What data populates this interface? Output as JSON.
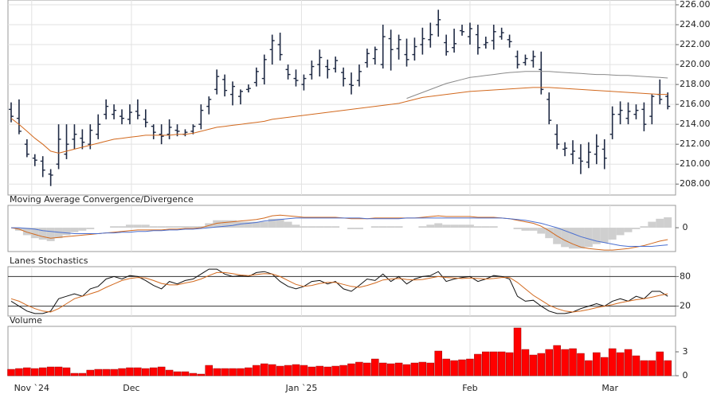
{
  "chart_data": [
    {
      "type": "ohlc",
      "color": "#1f2a44",
      "open": [
        215.5,
        214.6,
        212,
        210.6,
        210.3,
        209,
        210,
        211,
        212.5,
        212.6,
        212,
        213,
        215,
        215,
        214.8,
        214.5,
        215.3,
        214.5,
        213.8,
        213,
        213,
        213.4,
        213,
        213.3,
        214,
        215.8,
        217.5,
        218.5,
        217,
        216.8,
        217.5,
        218.2,
        218.6,
        221.5,
        222,
        219.5,
        218.6,
        218,
        219,
        220,
        219.8,
        219.6,
        219.2,
        218,
        218.4,
        220.2,
        220.6,
        220,
        222.6,
        221.6,
        221,
        221,
        222,
        222.5,
        224,
        222.2,
        221.7,
        223.4,
        222.8,
        223,
        222,
        222.4,
        222.8,
        222.5,
        220.8,
        220.2,
        220.4,
        219.5,
        216.5,
        213,
        211.5,
        211,
        210.6,
        210.2,
        211,
        211.5,
        213,
        215,
        214.6,
        215,
        215.5,
        214.8,
        217,
        216.8
      ],
      "high": [
        216.2,
        216.5,
        212.5,
        211,
        210.8,
        209.5,
        214,
        214,
        214,
        213.5,
        214,
        215,
        216.5,
        216,
        215.5,
        216,
        216.5,
        215.5,
        214,
        214,
        214.5,
        214,
        213.5,
        214,
        216,
        216.8,
        219.5,
        219,
        218.3,
        217.5,
        218,
        219.7,
        221,
        223,
        223.2,
        220,
        219.5,
        219,
        220.4,
        221.5,
        220.5,
        220.8,
        219.7,
        219.2,
        220,
        221.6,
        221.8,
        224,
        223.5,
        223,
        222.6,
        222.7,
        223.7,
        224.2,
        225.5,
        223,
        223.6,
        224,
        224.2,
        224,
        222.8,
        224,
        223.7,
        223,
        221.4,
        221,
        221.4,
        221.3,
        217.2,
        214,
        212.2,
        212.4,
        212,
        212.2,
        213,
        212.5,
        215.8,
        216.3,
        216.2,
        216,
        216.2,
        217,
        218.5,
        217.2
      ],
      "low": [
        214.2,
        213,
        210.7,
        209.8,
        208.7,
        207.8,
        209.5,
        210.5,
        211.5,
        211.5,
        211.5,
        212.5,
        214.5,
        214.5,
        214,
        214,
        214.5,
        213.7,
        212.5,
        212,
        212.5,
        212.8,
        212.8,
        213,
        213.5,
        215,
        217,
        216.8,
        215.9,
        216,
        217.2,
        217.8,
        218,
        220,
        220.4,
        218.5,
        217.8,
        217.4,
        218.5,
        218.8,
        218.6,
        219.2,
        217.8,
        217,
        217.8,
        219.7,
        220,
        219.6,
        219.4,
        220.5,
        219.8,
        220.4,
        221,
        221.7,
        222.8,
        220.9,
        221.2,
        222.9,
        222,
        221,
        221.6,
        221.5,
        222.5,
        221.7,
        219.6,
        219.9,
        219.7,
        217,
        214,
        211.5,
        210.8,
        210,
        209,
        209.6,
        210,
        209.5,
        212.5,
        214,
        214,
        214.5,
        213.3,
        214,
        216,
        215.5
      ],
      "close": [
        214.8,
        213.3,
        211,
        210.4,
        209.4,
        208.9,
        212.5,
        212,
        213,
        212.2,
        213.4,
        214,
        215.8,
        215.4,
        214.6,
        215.2,
        214.9,
        214.2,
        213.2,
        212.8,
        213.7,
        213.3,
        213.2,
        213.8,
        215.4,
        216.5,
        218.8,
        217.4,
        217.8,
        217.3,
        217.6,
        219.3,
        220.5,
        222.4,
        221,
        219,
        218.4,
        218.6,
        219.8,
        220.7,
        219.5,
        220.4,
        218.6,
        217.9,
        219.3,
        221.1,
        221.5,
        222.8,
        221.5,
        222.5,
        220.5,
        221.8,
        222.6,
        223,
        224.5,
        221.3,
        222.1,
        223.3,
        223.6,
        221.7,
        222.2,
        223.3,
        223.2,
        222.3,
        220,
        220.6,
        220.8,
        217.5,
        214.4,
        212,
        211.6,
        211.3,
        210.3,
        211.2,
        211.8,
        210.6,
        215,
        215.4,
        215.3,
        215.4,
        214,
        216.8,
        216.5,
        215.8
      ],
      "overlays": [
        {
          "color": "#d2691e",
          "values": [
            214.6,
            214,
            213.3,
            212.6,
            212,
            211.3,
            211.1,
            211.3,
            211.5,
            211.7,
            211.9,
            212.1,
            212.3,
            212.5,
            212.6,
            212.7,
            212.8,
            212.9,
            212.9,
            212.9,
            212.9,
            213,
            213,
            213.1,
            213.3,
            213.5,
            213.7,
            213.8,
            213.9,
            214,
            214.1,
            214.2,
            214.3,
            214.5,
            214.6,
            214.7,
            214.8,
            214.9,
            215,
            215.1,
            215.2,
            215.3,
            215.4,
            215.5,
            215.6,
            215.7,
            215.8,
            215.9,
            216,
            216.1,
            216.3,
            216.5,
            216.7,
            216.8,
            216.9,
            217,
            217.1,
            217.2,
            217.3,
            217.35,
            217.4,
            217.45,
            217.5,
            217.55,
            217.6,
            217.65,
            217.7,
            217.7,
            217.7,
            217.65,
            217.6,
            217.55,
            217.5,
            217.45,
            217.4,
            217.35,
            217.3,
            217.25,
            217.2,
            217.15,
            217.1,
            217.05,
            217,
            217
          ]
        },
        {
          "color": "#8a8a8a",
          "values": [
            null,
            null,
            null,
            null,
            null,
            null,
            null,
            null,
            null,
            null,
            null,
            null,
            null,
            null,
            null,
            null,
            null,
            null,
            null,
            null,
            null,
            null,
            null,
            null,
            null,
            null,
            null,
            null,
            null,
            null,
            null,
            null,
            null,
            null,
            null,
            null,
            null,
            null,
            null,
            null,
            null,
            null,
            null,
            null,
            null,
            null,
            null,
            null,
            null,
            null,
            216.6,
            216.9,
            217.2,
            217.5,
            217.8,
            218.1,
            218.3,
            218.5,
            218.7,
            218.8,
            218.9,
            219,
            219.1,
            219.2,
            219.25,
            219.3,
            219.3,
            219.3,
            219.3,
            219.25,
            219.2,
            219.15,
            219.1,
            219.05,
            219,
            219,
            218.95,
            218.9,
            218.9,
            218.85,
            218.8,
            218.75,
            218.7,
            218.65
          ]
        }
      ],
      "ylim": [
        206.9,
        226
      ],
      "yticks": [
        {
          "value": 208,
          "label": "208.00"
        },
        {
          "value": 210,
          "label": "210.00"
        },
        {
          "value": 212,
          "label": "212.00"
        },
        {
          "value": 214,
          "label": "214.00"
        },
        {
          "value": 216,
          "label": "216.00"
        },
        {
          "value": 218,
          "label": "218.00"
        },
        {
          "value": 220,
          "label": "220.00"
        },
        {
          "value": 222,
          "label": "222.00"
        },
        {
          "value": 224,
          "label": "224.00"
        },
        {
          "value": 226,
          "label": "226.00"
        }
      ],
      "grid": true
    },
    {
      "type": "line",
      "title": "Moving Average Convergence/Divergence",
      "series": [
        {
          "kind": "histogram",
          "color": "#cfcfcf",
          "values": [
            0,
            -0.4,
            -1,
            -1.4,
            -1.6,
            -1.8,
            -1.4,
            -1,
            -0.6,
            -0.4,
            -0.2,
            0,
            0,
            0.2,
            0.2,
            0.4,
            0.4,
            0.4,
            0.2,
            0.2,
            0.2,
            0.2,
            0.2,
            0.2,
            0.2,
            0.6,
            1,
            1,
            1,
            0.8,
            0.8,
            0.8,
            0.8,
            1.2,
            1.2,
            0.8,
            0.4,
            0.2,
            0.2,
            0.2,
            0.2,
            0.2,
            0,
            -0.2,
            -0.2,
            0,
            0.2,
            0.2,
            0.2,
            0.2,
            0,
            0,
            0.2,
            0.4,
            0.6,
            0.4,
            0.4,
            0.4,
            0.4,
            0.2,
            0.2,
            0.2,
            0,
            0,
            -0.2,
            -0.4,
            -0.4,
            -0.8,
            -1.4,
            -2.2,
            -2.6,
            -2.8,
            -2.8,
            -2.6,
            -2.2,
            -2,
            -1.6,
            -1,
            -0.6,
            -0.2,
            0.2,
            0.8,
            1.2,
            1.4
          ]
        },
        {
          "kind": "line",
          "color": "#d2691e",
          "values": [
            0,
            -0.2,
            -0.6,
            -0.9,
            -1.2,
            -1.4,
            -1.3,
            -1.2,
            -1.1,
            -1,
            -0.9,
            -0.8,
            -0.7,
            -0.6,
            -0.5,
            -0.4,
            -0.3,
            -0.3,
            -0.3,
            -0.3,
            -0.2,
            -0.2,
            -0.1,
            -0.1,
            0,
            0.3,
            0.6,
            0.7,
            0.8,
            0.9,
            1,
            1.1,
            1.3,
            1.6,
            1.7,
            1.6,
            1.5,
            1.4,
            1.4,
            1.4,
            1.4,
            1.4,
            1.3,
            1.2,
            1.2,
            1.2,
            1.3,
            1.3,
            1.3,
            1.3,
            1.3,
            1.3,
            1.4,
            1.5,
            1.6,
            1.5,
            1.5,
            1.5,
            1.5,
            1.4,
            1.4,
            1.4,
            1.3,
            1.2,
            1,
            0.8,
            0.6,
            0.2,
            -0.4,
            -1.1,
            -1.7,
            -2.2,
            -2.6,
            -2.8,
            -2.9,
            -3,
            -3,
            -2.9,
            -2.8,
            -2.6,
            -2.4,
            -2.1,
            -1.8,
            -1.6
          ]
        },
        {
          "kind": "line",
          "color": "#4a6fd0",
          "values": [
            0,
            0,
            -0.1,
            -0.2,
            -0.4,
            -0.5,
            -0.6,
            -0.7,
            -0.8,
            -0.8,
            -0.8,
            -0.8,
            -0.7,
            -0.7,
            -0.6,
            -0.6,
            -0.5,
            -0.5,
            -0.4,
            -0.4,
            -0.3,
            -0.3,
            -0.2,
            -0.2,
            -0.1,
            0,
            0.1,
            0.2,
            0.3,
            0.5,
            0.6,
            0.7,
            0.9,
            1,
            1.1,
            1.2,
            1.3,
            1.3,
            1.3,
            1.3,
            1.3,
            1.3,
            1.3,
            1.3,
            1.3,
            1.2,
            1.2,
            1.2,
            1.2,
            1.2,
            1.3,
            1.3,
            1.3,
            1.3,
            1.3,
            1.3,
            1.3,
            1.3,
            1.3,
            1.3,
            1.3,
            1.3,
            1.3,
            1.2,
            1.1,
            1,
            0.8,
            0.6,
            0.3,
            0,
            -0.4,
            -0.8,
            -1.2,
            -1.5,
            -1.8,
            -2,
            -2.2,
            -2.4,
            -2.5,
            -2.5,
            -2.5,
            -2.5,
            -2.4,
            -2.3
          ]
        }
      ],
      "ylim": [
        -3.2,
        3
      ],
      "yticks": [
        0
      ],
      "grid": false
    },
    {
      "type": "line",
      "title": "Lanes Stochastics",
      "series": [
        {
          "kind": "line",
          "color": "#111111",
          "values": [
            30,
            20,
            10,
            5,
            5,
            10,
            35,
            40,
            45,
            40,
            55,
            60,
            75,
            80,
            75,
            82,
            80,
            72,
            62,
            55,
            70,
            65,
            72,
            75,
            85,
            95,
            95,
            85,
            80,
            82,
            80,
            88,
            90,
            85,
            70,
            60,
            55,
            60,
            70,
            72,
            65,
            70,
            55,
            50,
            62,
            75,
            72,
            85,
            70,
            80,
            65,
            75,
            80,
            82,
            90,
            70,
            75,
            78,
            80,
            70,
            75,
            82,
            80,
            75,
            40,
            30,
            32,
            20,
            10,
            5,
            5,
            8,
            15,
            20,
            25,
            20,
            30,
            35,
            30,
            40,
            35,
            50,
            50,
            40
          ]
        },
        {
          "kind": "line",
          "color": "#d2691e",
          "values": [
            35,
            30,
            22,
            15,
            10,
            8,
            15,
            25,
            35,
            40,
            45,
            50,
            58,
            65,
            72,
            76,
            78,
            77,
            72,
            66,
            63,
            63,
            67,
            70,
            75,
            82,
            88,
            88,
            86,
            83,
            82,
            84,
            86,
            85,
            80,
            72,
            64,
            60,
            62,
            66,
            68,
            68,
            64,
            60,
            58,
            62,
            67,
            73,
            75,
            76,
            74,
            73,
            74,
            77,
            80,
            78,
            77,
            76,
            77,
            76,
            75,
            76,
            78,
            78,
            68,
            55,
            42,
            32,
            22,
            15,
            10,
            8,
            10,
            13,
            17,
            20,
            23,
            27,
            30,
            33,
            35,
            38,
            42,
            45
          ]
        }
      ],
      "ylim": [
        0,
        100
      ],
      "yticks": [
        20,
        80
      ],
      "grid": true
    },
    {
      "type": "bar",
      "title": "Volume",
      "color": "#ff0000",
      "values": [
        0.8,
        0.9,
        1,
        0.9,
        1,
        1.1,
        1.1,
        1,
        0.3,
        0.3,
        0.7,
        0.8,
        0.8,
        0.8,
        0.9,
        1,
        1,
        0.9,
        1,
        1.1,
        0.7,
        0.5,
        0.5,
        0.3,
        0.2,
        1.3,
        0.9,
        0.9,
        0.9,
        0.9,
        1,
        1.3,
        1.5,
        1.4,
        1.2,
        1.3,
        1.4,
        1.3,
        1.1,
        1.2,
        1.1,
        1.2,
        1.3,
        1.5,
        1.7,
        1.6,
        2.1,
        1.6,
        1.5,
        1.6,
        1.4,
        1.6,
        1.7,
        1.6,
        3.1,
        2.1,
        1.9,
        2,
        2.1,
        2.7,
        3,
        3,
        3,
        2.9,
        6,
        3.3,
        2.6,
        2.8,
        3.3,
        3.8,
        3.3,
        3.4,
        2.8,
        1.9,
        2.9,
        2.3,
        3.4,
        2.9,
        3.3,
        2.5,
        1.9,
        1.9,
        3,
        1.9
      ],
      "ylim": [
        0,
        6.2
      ],
      "yticks": [
        0,
        3
      ],
      "xticks": [
        {
          "value": 2.6,
          "label": "Nov `24"
        },
        {
          "value": 15.2,
          "label": "Dec"
        },
        {
          "value": 36.7,
          "label": "Jan `25"
        },
        {
          "value": 58,
          "label": "Feb"
        },
        {
          "value": 75.7,
          "label": "Mar"
        }
      ]
    }
  ]
}
